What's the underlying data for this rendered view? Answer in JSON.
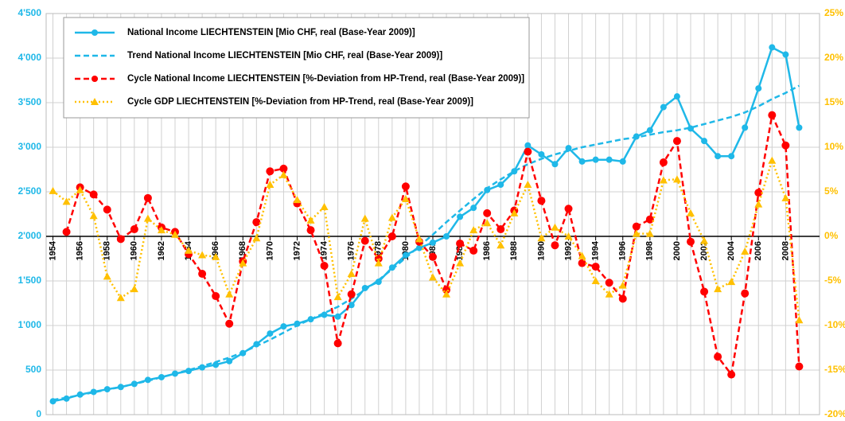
{
  "chart_data": {
    "type": "line",
    "x": [
      1954,
      1955,
      1956,
      1957,
      1958,
      1959,
      1960,
      1961,
      1962,
      1963,
      1964,
      1965,
      1966,
      1967,
      1968,
      1969,
      1970,
      1971,
      1972,
      1973,
      1974,
      1975,
      1976,
      1977,
      1978,
      1979,
      1980,
      1981,
      1982,
      1983,
      1984,
      1985,
      1986,
      1987,
      1988,
      1989,
      1990,
      1991,
      1992,
      1993,
      1994,
      1995,
      1996,
      1997,
      1998,
      1999,
      2000,
      2001,
      2002,
      2003,
      2004,
      2005,
      2006,
      2007,
      2008,
      2009
    ],
    "xlim": [
      1953.5,
      2010.5
    ],
    "xticks": [
      1954,
      1956,
      1958,
      1960,
      1962,
      1964,
      1966,
      1968,
      1970,
      1972,
      1974,
      1976,
      1978,
      1980,
      1982,
      1984,
      1986,
      1988,
      1990,
      1992,
      1994,
      1996,
      1998,
      2000,
      2002,
      2004,
      2006,
      2008
    ],
    "ylim": [
      0,
      4500
    ],
    "yticks": [
      0,
      500,
      {
        "value": 1000,
        "label": "1'000"
      },
      {
        "value": 1500,
        "label": "1'500"
      },
      {
        "value": 2000,
        "label": "2'000"
      },
      {
        "value": 2500,
        "label": "2'500"
      },
      {
        "value": 3000,
        "label": "3'000"
      },
      {
        "value": 3500,
        "label": "3'500"
      },
      {
        "value": 4000,
        "label": "4'000"
      },
      {
        "value": 4500,
        "label": "4'500"
      }
    ],
    "y2lim": [
      -20,
      25
    ],
    "y2ticks": [
      {
        "value": -20,
        "label": "-20%"
      },
      {
        "value": -15,
        "label": "-15%"
      },
      {
        "value": -10,
        "label": "-10%"
      },
      {
        "value": -5,
        "label": "-5%"
      },
      {
        "value": 0,
        "label": "0%"
      },
      {
        "value": 5,
        "label": "5%"
      },
      {
        "value": 10,
        "label": "10%"
      },
      {
        "value": 15,
        "label": "15%"
      },
      {
        "value": 20,
        "label": "20%"
      },
      {
        "value": 25,
        "label": "25%"
      }
    ],
    "grid": true,
    "legend": "upper left",
    "series": [
      {
        "name": "National Income LIECHTENSTEIN [Mio CHF, real (Base-Year 2009)]",
        "color": "#1fb8e8",
        "style": "solid",
        "marker": "circle",
        "values": [
          150,
          180,
          225,
          255,
          285,
          310,
          345,
          390,
          420,
          460,
          490,
          530,
          560,
          600,
          690,
          790,
          910,
          990,
          1020,
          1070,
          1120,
          1100,
          1230,
          1420,
          1490,
          1650,
          1790,
          1870,
          1930,
          2000,
          2220,
          2320,
          2520,
          2580,
          2730,
          3020,
          2920,
          2810,
          2990,
          2840,
          2860,
          2860,
          2840,
          3120,
          3190,
          3450,
          3570,
          3210,
          3070,
          2900,
          2900,
          3220,
          3660,
          4120,
          4040,
          3220
        ]
      },
      {
        "name": "Trend National Income LIECHTENSTEIN [Mio CHF, real (Base-Year 2009)]",
        "color": "#1fb8e8",
        "style": "dashed",
        "marker": "none",
        "values": [
          165,
          190,
          220,
          250,
          280,
          310,
          345,
          380,
          420,
          460,
          500,
          545,
          590,
          640,
          700,
          770,
          840,
          920,
          1000,
          1070,
          1140,
          1210,
          1300,
          1400,
          1510,
          1630,
          1760,
          1890,
          2020,
          2160,
          2290,
          2420,
          2540,
          2640,
          2730,
          2810,
          2870,
          2920,
          2960,
          3000,
          3030,
          3060,
          3090,
          3110,
          3140,
          3170,
          3190,
          3220,
          3260,
          3300,
          3340,
          3390,
          3460,
          3540,
          3610,
          3690
        ]
      },
      {
        "name": "Cycle National Income LIECHTENSTEIN [%-Deviation from HP-Trend, real (Base-Year 2009)]",
        "color": "#ff0000",
        "style": "dashed",
        "marker": "circle",
        "axis": "y2",
        "values": [
          null,
          0.5,
          5.5,
          4.7,
          3.0,
          -0.3,
          0.8,
          4.3,
          1.0,
          0.5,
          -2.0,
          -4.2,
          -6.7,
          -9.8,
          -2.8,
          1.6,
          7.3,
          7.6,
          3.7,
          0.7,
          -3.3,
          -12.0,
          -6.5,
          -0.5,
          -2.5,
          0.0,
          5.6,
          -0.6,
          -2.3,
          -6.0,
          -0.8,
          -1.6,
          2.6,
          0.8,
          2.9,
          9.5,
          4.0,
          -1.0,
          3.1,
          -3.0,
          -3.4,
          -5.2,
          -7.0,
          1.1,
          1.9,
          8.3,
          10.7,
          -0.6,
          -6.2,
          -13.5,
          -15.5,
          -6.4,
          4.9,
          13.6,
          10.2,
          -14.6
        ]
      },
      {
        "name": "Cycle GDP LIECHTENSTEIN [%-Deviation from HP-Trend, real (Base-Year 2009)]",
        "color": "#ffc000",
        "style": "dotted",
        "marker": "triangle",
        "axis": "y2",
        "values": [
          5.1,
          3.9,
          5.2,
          2.3,
          -4.5,
          -6.9,
          -5.9,
          2.0,
          0.7,
          0.2,
          -1.6,
          -2.1,
          -2.3,
          -6.5,
          -3.0,
          -0.2,
          5.8,
          6.9,
          4.1,
          1.8,
          3.3,
          -6.8,
          -4.2,
          2.0,
          -3.0,
          2.1,
          4.2,
          -0.3,
          -4.6,
          -6.5,
          -3.0,
          0.7,
          1.5,
          -1.0,
          2.6,
          5.8,
          -0.2,
          1.0,
          0.0,
          -2.2,
          -5.0,
          -6.5,
          -5.5,
          0.3,
          0.3,
          6.3,
          6.4,
          2.6,
          -0.5,
          -5.9,
          -5.1,
          -1.7,
          3.6,
          8.5,
          4.3,
          -9.4
        ]
      }
    ]
  }
}
